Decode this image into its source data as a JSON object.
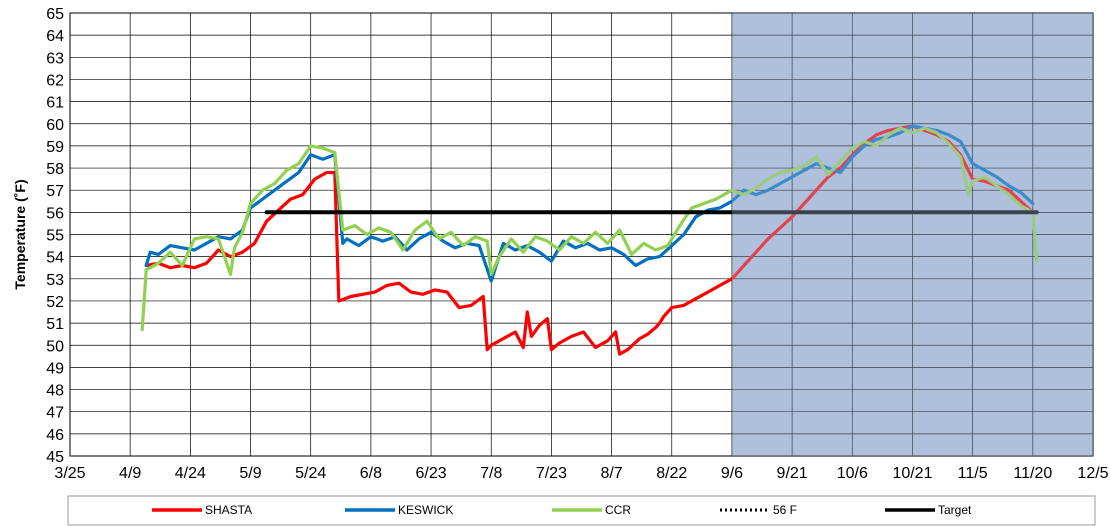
{
  "chart_data": {
    "type": "line",
    "title": "",
    "ylabel": "Temperature (˚F)",
    "xlabel": "",
    "ylim": [
      45,
      65
    ],
    "xlim_labels": [
      "3/25",
      "12/5"
    ],
    "x_tick_labels": [
      "3/25",
      "4/9",
      "4/24",
      "5/9",
      "5/24",
      "6/8",
      "6/23",
      "7/8",
      "7/23",
      "8/7",
      "8/22",
      "9/6",
      "9/21",
      "10/6",
      "10/21",
      "11/5",
      "11/20",
      "12/5"
    ],
    "y_tick_labels": [
      "45",
      "46",
      "47",
      "48",
      "49",
      "50",
      "51",
      "52",
      "53",
      "54",
      "55",
      "56",
      "57",
      "58",
      "59",
      "60",
      "61",
      "62",
      "63",
      "64",
      "65"
    ],
    "grid": true,
    "shaded_region": {
      "from": "9/6",
      "to": "12/5",
      "color": "#aec1dc"
    },
    "legend_position": "bottom",
    "series": [
      {
        "name": "SHASTA",
        "color": "#ff0000",
        "style": "solid",
        "x": [
          "4/13",
          "4/16",
          "4/19",
          "4/22",
          "4/25",
          "4/28",
          "5/1",
          "5/4",
          "5/7",
          "5/10",
          "5/13",
          "5/16",
          "5/19",
          "5/22",
          "5/25",
          "5/28",
          "5/30",
          "5/31",
          "6/3",
          "6/6",
          "6/9",
          "6/12",
          "6/15",
          "6/18",
          "6/21",
          "6/24",
          "6/27",
          "6/30",
          "7/3",
          "7/6",
          "7/7",
          "7/8",
          "7/11",
          "7/14",
          "7/16",
          "7/17",
          "7/18",
          "7/20",
          "7/22",
          "7/23",
          "7/25",
          "7/28",
          "7/31",
          "8/3",
          "8/6",
          "8/8",
          "8/9",
          "8/11",
          "8/14",
          "8/16",
          "8/18",
          "8/19",
          "8/20",
          "8/22",
          "8/25",
          "8/28",
          "8/31",
          "9/3",
          "9/6",
          "9/9",
          "9/12",
          "9/15",
          "9/18",
          "9/21",
          "9/24",
          "9/27",
          "9/30",
          "10/3",
          "10/6",
          "10/9",
          "10/12",
          "10/15",
          "10/18",
          "10/21",
          "10/24",
          "10/27",
          "10/30",
          "11/2",
          "11/5",
          "11/8",
          "11/11",
          "11/14",
          "11/17",
          "11/20"
        ],
        "values": [
          53.6,
          53.7,
          53.5,
          53.6,
          53.5,
          53.7,
          54.3,
          54.0,
          54.2,
          54.6,
          55.6,
          56.1,
          56.6,
          56.8,
          57.5,
          57.8,
          57.8,
          52.0,
          52.2,
          52.3,
          52.4,
          52.7,
          52.8,
          52.4,
          52.3,
          52.5,
          52.4,
          51.7,
          51.8,
          52.2,
          49.8,
          50.0,
          50.3,
          50.6,
          49.9,
          51.5,
          50.4,
          50.9,
          51.2,
          49.8,
          50.1,
          50.4,
          50.6,
          49.9,
          50.2,
          50.6,
          49.6,
          49.8,
          50.3,
          50.5,
          50.8,
          51.0,
          51.3,
          51.7,
          51.8,
          52.1,
          52.4,
          52.7,
          53.0,
          53.6,
          54.2,
          54.8,
          55.3,
          55.8,
          56.4,
          57.0,
          57.6,
          58.0,
          58.6,
          59.1,
          59.5,
          59.7,
          59.8,
          59.9,
          59.7,
          59.5,
          59.2,
          58.6,
          57.5,
          57.4,
          57.2,
          57.0,
          56.5,
          56.0
        ]
      },
      {
        "name": "KESWICK",
        "color": "#0070c0",
        "style": "solid",
        "x": [
          "4/13",
          "4/14",
          "4/16",
          "4/19",
          "4/22",
          "4/25",
          "4/28",
          "5/1",
          "5/4",
          "5/7",
          "5/9",
          "5/12",
          "5/15",
          "5/18",
          "5/21",
          "5/24",
          "5/27",
          "5/30",
          "6/1",
          "6/2",
          "6/5",
          "6/8",
          "6/11",
          "6/14",
          "6/17",
          "6/20",
          "6/23",
          "6/26",
          "6/29",
          "7/2",
          "7/5",
          "7/8",
          "7/11",
          "7/14",
          "7/17",
          "7/20",
          "7/23",
          "7/26",
          "7/29",
          "8/1",
          "8/4",
          "8/7",
          "8/10",
          "8/13",
          "8/16",
          "8/19",
          "8/22",
          "8/25",
          "8/28",
          "8/31",
          "9/3",
          "9/6",
          "9/9",
          "9/12",
          "9/15",
          "9/18",
          "9/21",
          "9/24",
          "9/27",
          "9/30",
          "10/3",
          "10/6",
          "10/9",
          "10/12",
          "10/15",
          "10/18",
          "10/21",
          "10/24",
          "10/27",
          "10/30",
          "11/2",
          "11/5",
          "11/8",
          "11/11",
          "11/14",
          "11/17",
          "11/20"
        ],
        "values": [
          53.6,
          54.2,
          54.1,
          54.5,
          54.4,
          54.3,
          54.6,
          54.9,
          54.8,
          55.2,
          56.2,
          56.6,
          57.0,
          57.4,
          57.8,
          58.6,
          58.4,
          58.6,
          54.6,
          54.8,
          54.5,
          54.9,
          54.7,
          54.9,
          54.3,
          54.8,
          55.1,
          54.7,
          54.4,
          54.6,
          54.5,
          52.9,
          54.6,
          54.3,
          54.5,
          54.2,
          53.8,
          54.7,
          54.4,
          54.6,
          54.3,
          54.4,
          54.1,
          53.6,
          53.9,
          54.0,
          54.5,
          55.0,
          55.8,
          56.1,
          56.2,
          56.5,
          57.0,
          56.8,
          57.0,
          57.3,
          57.6,
          57.9,
          58.2,
          58.0,
          57.8,
          58.5,
          59.0,
          59.3,
          59.4,
          59.6,
          59.9,
          59.8,
          59.7,
          59.5,
          59.2,
          58.2,
          57.9,
          57.6,
          57.2,
          56.9,
          56.4
        ]
      },
      {
        "name": "CCR",
        "color": "#92d050",
        "style": "solid",
        "x": [
          "4/12",
          "4/13",
          "4/16",
          "4/19",
          "4/22",
          "4/25",
          "4/28",
          "5/1",
          "5/4",
          "5/5",
          "5/7",
          "5/9",
          "5/12",
          "5/15",
          "5/18",
          "5/21",
          "5/24",
          "5/27",
          "5/30",
          "6/1",
          "6/4",
          "6/7",
          "6/10",
          "6/13",
          "6/16",
          "6/19",
          "6/22",
          "6/25",
          "6/28",
          "7/1",
          "7/4",
          "7/7",
          "7/8",
          "7/10",
          "7/13",
          "7/16",
          "7/19",
          "7/22",
          "7/25",
          "7/28",
          "7/31",
          "8/3",
          "8/6",
          "8/9",
          "8/12",
          "8/15",
          "8/18",
          "8/21",
          "8/24",
          "8/27",
          "8/30",
          "9/2",
          "9/6",
          "9/9",
          "9/12",
          "9/15",
          "9/18",
          "9/21",
          "9/24",
          "9/27",
          "9/30",
          "10/3",
          "10/6",
          "10/9",
          "10/12",
          "10/15",
          "10/18",
          "10/21",
          "10/24",
          "10/27",
          "10/30",
          "11/2",
          "11/4",
          "11/5",
          "11/8",
          "11/11",
          "11/14",
          "11/17",
          "11/20",
          "11/21"
        ],
        "values": [
          50.7,
          53.4,
          53.7,
          54.2,
          53.6,
          54.8,
          54.9,
          54.8,
          53.2,
          54.4,
          55.1,
          56.4,
          57.0,
          57.3,
          57.9,
          58.2,
          59.0,
          58.9,
          58.7,
          55.2,
          55.4,
          55.0,
          55.3,
          55.1,
          54.3,
          55.2,
          55.6,
          54.8,
          55.1,
          54.5,
          54.9,
          54.7,
          53.2,
          54.0,
          54.8,
          54.2,
          54.9,
          54.7,
          54.3,
          54.9,
          54.6,
          55.1,
          54.6,
          55.2,
          54.1,
          54.6,
          54.3,
          54.5,
          55.4,
          56.2,
          56.4,
          56.6,
          57.0,
          56.8,
          57.1,
          57.5,
          57.8,
          57.9,
          58.1,
          58.5,
          57.7,
          58.3,
          58.9,
          59.2,
          59.0,
          59.5,
          59.8,
          59.6,
          59.8,
          59.6,
          59.1,
          58.5,
          56.8,
          57.4,
          57.6,
          57.2,
          56.8,
          56.3,
          56.0,
          53.8
        ]
      },
      {
        "name": "56 F",
        "color": "#000000",
        "style": "dotted",
        "x": [],
        "values": []
      },
      {
        "name": "Target",
        "color": "#000000",
        "style": "solid",
        "x": [
          "5/13",
          "11/21"
        ],
        "values": [
          56,
          56
        ]
      }
    ]
  }
}
